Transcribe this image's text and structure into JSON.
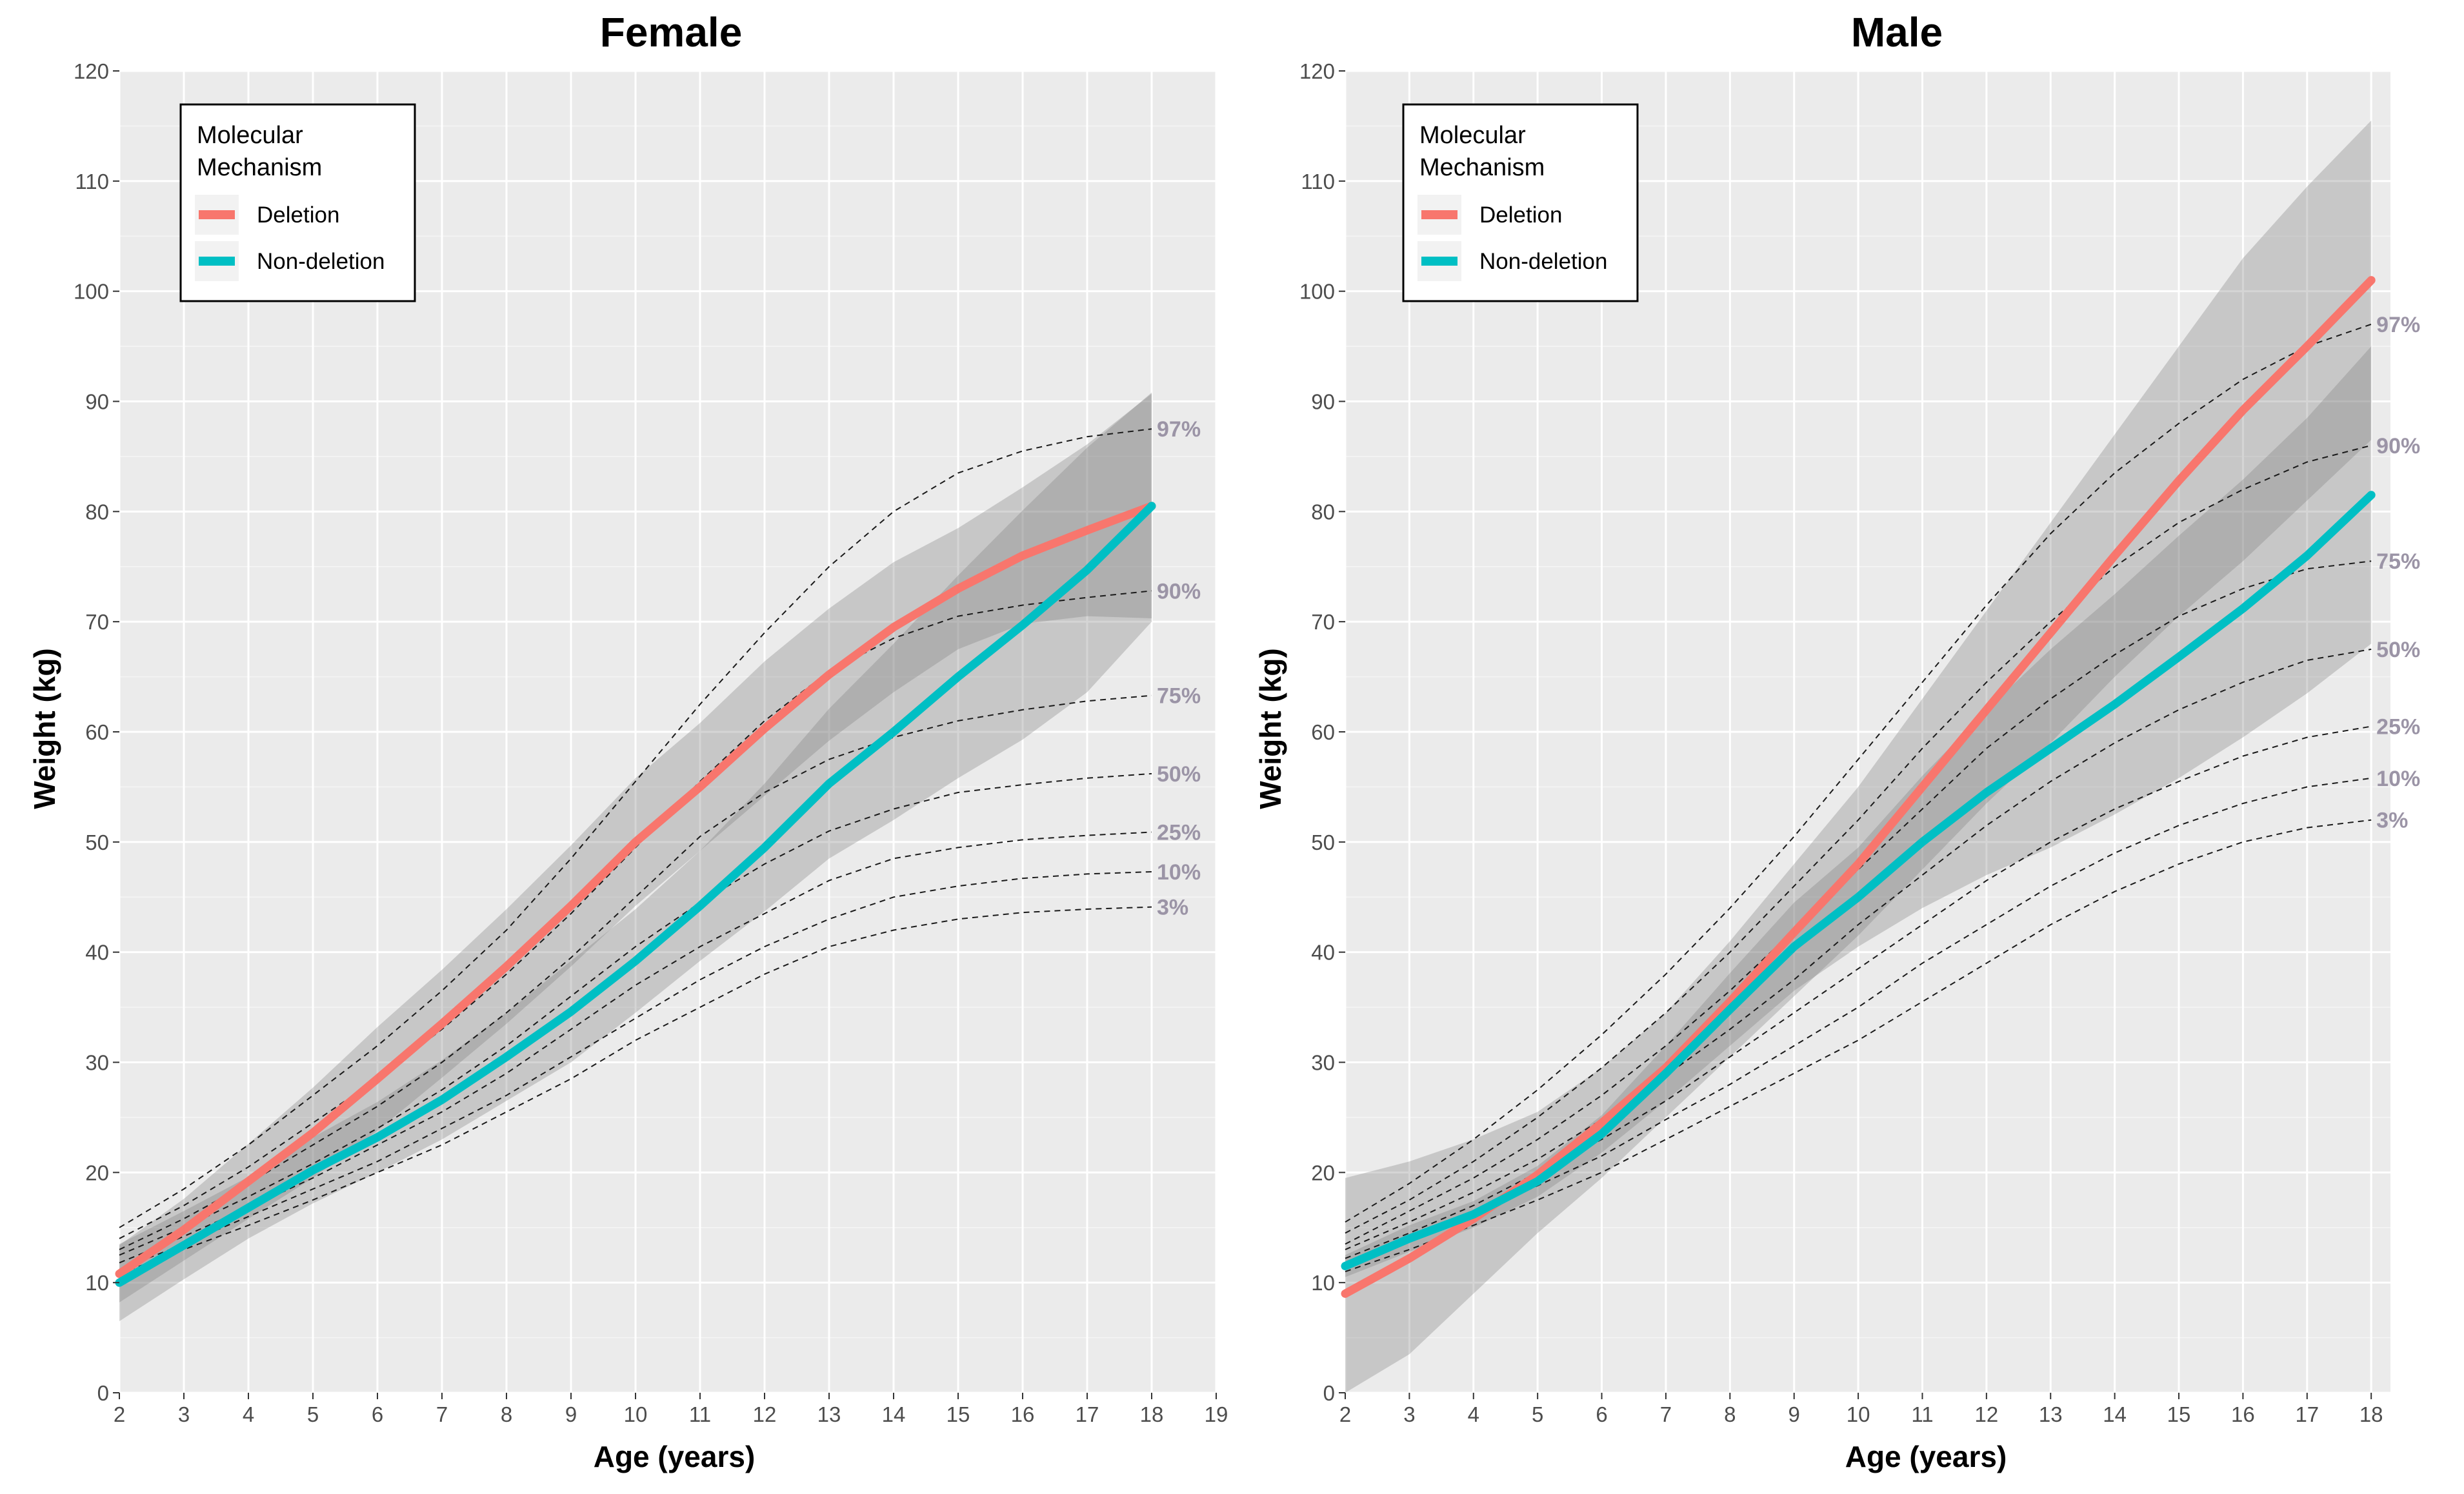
{
  "figure": {
    "background": "#ffffff"
  },
  "legend": {
    "title_line1": "Molecular",
    "title_line2": "Mechanism",
    "items": [
      {
        "label": "Deletion",
        "color": "#F8766D"
      },
      {
        "label": "Non-deletion",
        "color": "#00BFC4"
      }
    ]
  },
  "chart_data": [
    {
      "type": "line",
      "title": "Female",
      "xlabel": "Age (years)",
      "ylabel": "Weight (kg)",
      "xlim": [
        2,
        19
      ],
      "ylim": [
        0,
        120
      ],
      "xticks": [
        2,
        3,
        4,
        5,
        6,
        7,
        8,
        9,
        10,
        11,
        12,
        13,
        14,
        15,
        16,
        17,
        18,
        19
      ],
      "yticks": [
        0,
        10,
        20,
        30,
        40,
        50,
        60,
        70,
        80,
        90,
        100,
        110,
        120
      ],
      "x": [
        2,
        3,
        4,
        5,
        6,
        7,
        8,
        9,
        10,
        11,
        12,
        13,
        14,
        15,
        16,
        17,
        18
      ],
      "series": [
        {
          "name": "Deletion",
          "color": "#F8766D",
          "values": [
            10.8,
            14.8,
            19.2,
            23.6,
            28.5,
            33.5,
            38.7,
            44.2,
            50.0,
            55.0,
            60.3,
            65.2,
            69.5,
            73.0,
            76.0,
            78.3,
            80.5
          ],
          "lower": [
            8.2,
            12.0,
            15.8,
            19.5,
            23.8,
            28.6,
            33.5,
            38.7,
            44.2,
            49.2,
            54.2,
            59.2,
            63.6,
            67.5,
            69.8,
            70.5,
            70.3
          ],
          "upper": [
            13.4,
            17.6,
            22.6,
            27.7,
            33.2,
            38.4,
            43.9,
            49.7,
            55.8,
            60.8,
            66.4,
            71.2,
            75.4,
            78.5,
            82.2,
            86.1,
            90.7
          ]
        },
        {
          "name": "Non-deletion",
          "color": "#00BFC4",
          "values": [
            10.0,
            13.4,
            16.8,
            20.2,
            23.2,
            26.6,
            30.5,
            34.6,
            39.2,
            44.2,
            49.5,
            55.3,
            60.0,
            65.0,
            69.7,
            74.7,
            80.5
          ],
          "lower": [
            6.5,
            10.3,
            14.0,
            17.2,
            20.0,
            23.0,
            26.5,
            30.0,
            34.5,
            39.2,
            43.7,
            48.5,
            52.0,
            55.8,
            59.3,
            63.6,
            70.0
          ],
          "upper": [
            13.5,
            16.5,
            19.6,
            23.2,
            26.4,
            30.2,
            34.5,
            39.2,
            43.9,
            49.2,
            55.3,
            62.1,
            68.0,
            74.2,
            80.1,
            85.8,
            90.8
          ]
        }
      ],
      "percentiles": [
        {
          "label": "97%",
          "values": [
            15.0,
            18.5,
            22.5,
            27.0,
            31.5,
            36.5,
            42.0,
            48.5,
            55.5,
            62.5,
            69.0,
            75.0,
            80.0,
            83.5,
            85.5,
            86.8,
            87.5
          ]
        },
        {
          "label": "90%",
          "values": [
            14.0,
            17.0,
            20.5,
            24.5,
            28.5,
            33.0,
            38.0,
            43.5,
            49.5,
            55.5,
            61.0,
            65.5,
            68.5,
            70.5,
            71.5,
            72.2,
            72.8
          ]
        },
        {
          "label": "75%",
          "values": [
            13.0,
            15.8,
            19.0,
            22.5,
            26.0,
            30.0,
            34.5,
            39.5,
            45.0,
            50.5,
            54.5,
            57.5,
            59.5,
            61.0,
            62.0,
            62.8,
            63.3
          ]
        },
        {
          "label": "50%",
          "values": [
            12.5,
            15.0,
            17.8,
            20.8,
            24.0,
            27.5,
            31.5,
            36.0,
            40.5,
            44.5,
            48.0,
            51.0,
            53.0,
            54.5,
            55.2,
            55.8,
            56.2
          ]
        },
        {
          "label": "25%",
          "values": [
            11.8,
            14.2,
            16.8,
            19.5,
            22.5,
            25.5,
            29.0,
            33.0,
            37.0,
            40.5,
            43.5,
            46.5,
            48.5,
            49.5,
            50.2,
            50.6,
            50.9
          ]
        },
        {
          "label": "10%",
          "values": [
            11.2,
            13.5,
            16.0,
            18.5,
            21.0,
            24.0,
            27.0,
            30.5,
            34.0,
            37.5,
            40.5,
            43.0,
            45.0,
            46.0,
            46.7,
            47.1,
            47.3
          ]
        },
        {
          "label": "3%",
          "values": [
            10.8,
            13.0,
            15.2,
            17.5,
            20.0,
            22.5,
            25.5,
            28.5,
            32.0,
            35.0,
            38.0,
            40.5,
            42.0,
            43.0,
            43.6,
            43.9,
            44.1
          ]
        }
      ]
    },
    {
      "type": "line",
      "title": "Male",
      "xlabel": "Age (years)",
      "ylabel": "Weight (kg)",
      "xlim": [
        2,
        18.3
      ],
      "ylim": [
        0,
        120
      ],
      "xticks": [
        2,
        3,
        4,
        5,
        6,
        7,
        8,
        9,
        10,
        11,
        12,
        13,
        14,
        15,
        16,
        17,
        18
      ],
      "yticks": [
        0,
        10,
        20,
        30,
        40,
        50,
        60,
        70,
        80,
        90,
        100,
        110,
        120
      ],
      "x": [
        2,
        3,
        4,
        5,
        6,
        7,
        8,
        9,
        10,
        11,
        12,
        13,
        14,
        15,
        16,
        17,
        18
      ],
      "series": [
        {
          "name": "Deletion",
          "color": "#F8766D",
          "values": [
            9.0,
            12.2,
            15.8,
            19.8,
            24.5,
            29.5,
            35.5,
            41.8,
            48.0,
            55.0,
            62.0,
            69.0,
            76.0,
            82.8,
            89.2,
            95.0,
            101.0
          ],
          "lower": [
            -1.5,
            3.5,
            9.0,
            14.5,
            19.5,
            25.0,
            30.5,
            36.0,
            41.5,
            47.5,
            53.5,
            59.0,
            65.0,
            70.5,
            75.5,
            81.0,
            86.5
          ],
          "upper": [
            19.5,
            21.0,
            23.0,
            25.5,
            29.5,
            34.5,
            41.0,
            48.0,
            55.0,
            63.0,
            71.0,
            79.0,
            87.0,
            95.0,
            103.0,
            109.5,
            115.5
          ]
        },
        {
          "name": "Non-deletion",
          "color": "#00BFC4",
          "values": [
            11.5,
            14.0,
            16.2,
            19.2,
            23.5,
            29.0,
            34.8,
            40.5,
            45.0,
            50.0,
            54.5,
            58.5,
            62.5,
            66.8,
            71.2,
            76.0,
            81.5
          ],
          "lower": [
            10.5,
            12.8,
            15.0,
            17.8,
            21.8,
            26.5,
            31.5,
            36.5,
            40.5,
            44.0,
            47.0,
            49.5,
            52.5,
            55.8,
            59.5,
            63.5,
            68.0
          ],
          "upper": [
            12.5,
            15.2,
            17.4,
            20.6,
            25.2,
            31.5,
            38.1,
            44.5,
            49.5,
            56.0,
            62.0,
            67.5,
            72.5,
            77.8,
            82.9,
            88.5,
            95.0
          ]
        }
      ],
      "percentiles": [
        {
          "label": "97%",
          "values": [
            15.5,
            19.0,
            23.0,
            27.5,
            32.5,
            38.0,
            44.0,
            50.5,
            57.5,
            64.5,
            71.5,
            78.0,
            83.5,
            88.0,
            92.0,
            95.0,
            97.0
          ]
        },
        {
          "label": "90%",
          "values": [
            14.5,
            17.5,
            21.0,
            25.0,
            29.5,
            34.5,
            40.0,
            46.0,
            52.0,
            58.5,
            64.5,
            70.0,
            75.0,
            79.0,
            82.0,
            84.5,
            86.0
          ]
        },
        {
          "label": "75%",
          "values": [
            13.5,
            16.5,
            19.5,
            23.0,
            27.0,
            31.5,
            36.5,
            42.0,
            47.5,
            53.0,
            58.5,
            63.0,
            67.0,
            70.5,
            73.0,
            74.8,
            75.5
          ]
        },
        {
          "label": "50%",
          "values": [
            13.0,
            15.5,
            18.2,
            21.2,
            24.8,
            28.8,
            33.0,
            37.5,
            42.5,
            47.0,
            51.5,
            55.5,
            59.0,
            62.0,
            64.5,
            66.5,
            67.5
          ]
        },
        {
          "label": "25%",
          "values": [
            12.2,
            14.5,
            17.0,
            20.0,
            23.0,
            26.5,
            30.5,
            34.5,
            38.5,
            42.5,
            46.5,
            50.0,
            53.0,
            55.5,
            57.8,
            59.5,
            60.5
          ]
        },
        {
          "label": "10%",
          "values": [
            11.5,
            13.8,
            16.2,
            18.8,
            21.5,
            24.8,
            28.0,
            31.5,
            35.0,
            39.0,
            42.5,
            46.0,
            49.0,
            51.5,
            53.5,
            55.0,
            55.8
          ]
        },
        {
          "label": "3%",
          "values": [
            11.0,
            13.0,
            15.2,
            17.5,
            20.0,
            23.0,
            26.0,
            29.0,
            32.0,
            35.5,
            39.0,
            42.5,
            45.5,
            48.0,
            50.0,
            51.3,
            52.0
          ]
        }
      ]
    }
  ]
}
